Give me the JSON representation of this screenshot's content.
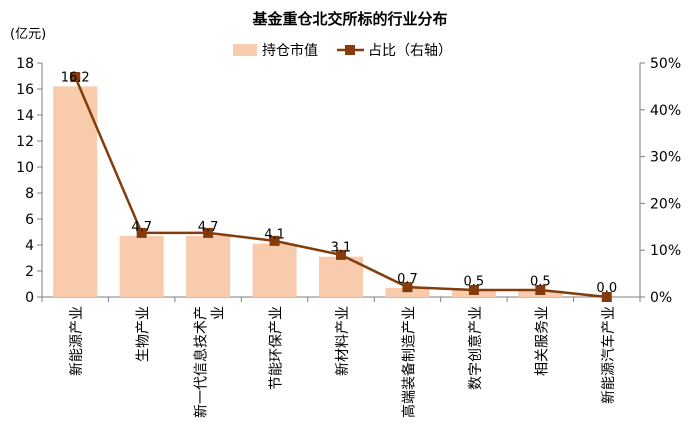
{
  "chart_data": {
    "type": "bar+line",
    "title": "基金重仓北交所标的行业分布",
    "y_left_unit": "(亿元)",
    "categories": [
      "新能源产业",
      "生物产业",
      "新一代信息技术产业",
      "节能环保产业",
      "新材料产业",
      "高端装备制造产业",
      "数字创意产业",
      "相关服务业",
      "新能源汽车产业"
    ],
    "category_lines": [
      [
        "新能源产业"
      ],
      [
        "生物产业"
      ],
      [
        "新一代信息技术产",
        "业"
      ],
      [
        "节能环保产业"
      ],
      [
        "新材料产业"
      ],
      [
        "高端装备制造产业"
      ],
      [
        "数字创意产业"
      ],
      [
        "相关服务业"
      ],
      [
        "新能源汽车产业"
      ]
    ],
    "series": [
      {
        "name": "持仓市值",
        "type": "bar",
        "axis": "left",
        "color": "#f8cbad",
        "values": [
          16.2,
          4.7,
          4.7,
          4.1,
          3.1,
          0.7,
          0.5,
          0.5,
          0.0
        ],
        "labels": [
          "16.2",
          "4.7",
          "4.7",
          "4.1",
          "3.1",
          "0.7",
          "0.5",
          "0.5",
          "0.0"
        ]
      },
      {
        "name": "占比（右轴）",
        "type": "line",
        "axis": "right",
        "color": "#843c0c",
        "values": [
          47,
          13.7,
          13.7,
          12.0,
          9.0,
          2.1,
          1.5,
          1.5,
          0.0
        ]
      }
    ],
    "y_left": {
      "min": 0,
      "max": 18,
      "ticks": [
        "0",
        "2",
        "4",
        "6",
        "8",
        "10",
        "12",
        "14",
        "16",
        "18"
      ]
    },
    "y_right": {
      "min": 0,
      "max": 50,
      "ticks": [
        "0%",
        "10%",
        "20%",
        "30%",
        "40%",
        "50%"
      ]
    },
    "legend_position": "top-center"
  }
}
